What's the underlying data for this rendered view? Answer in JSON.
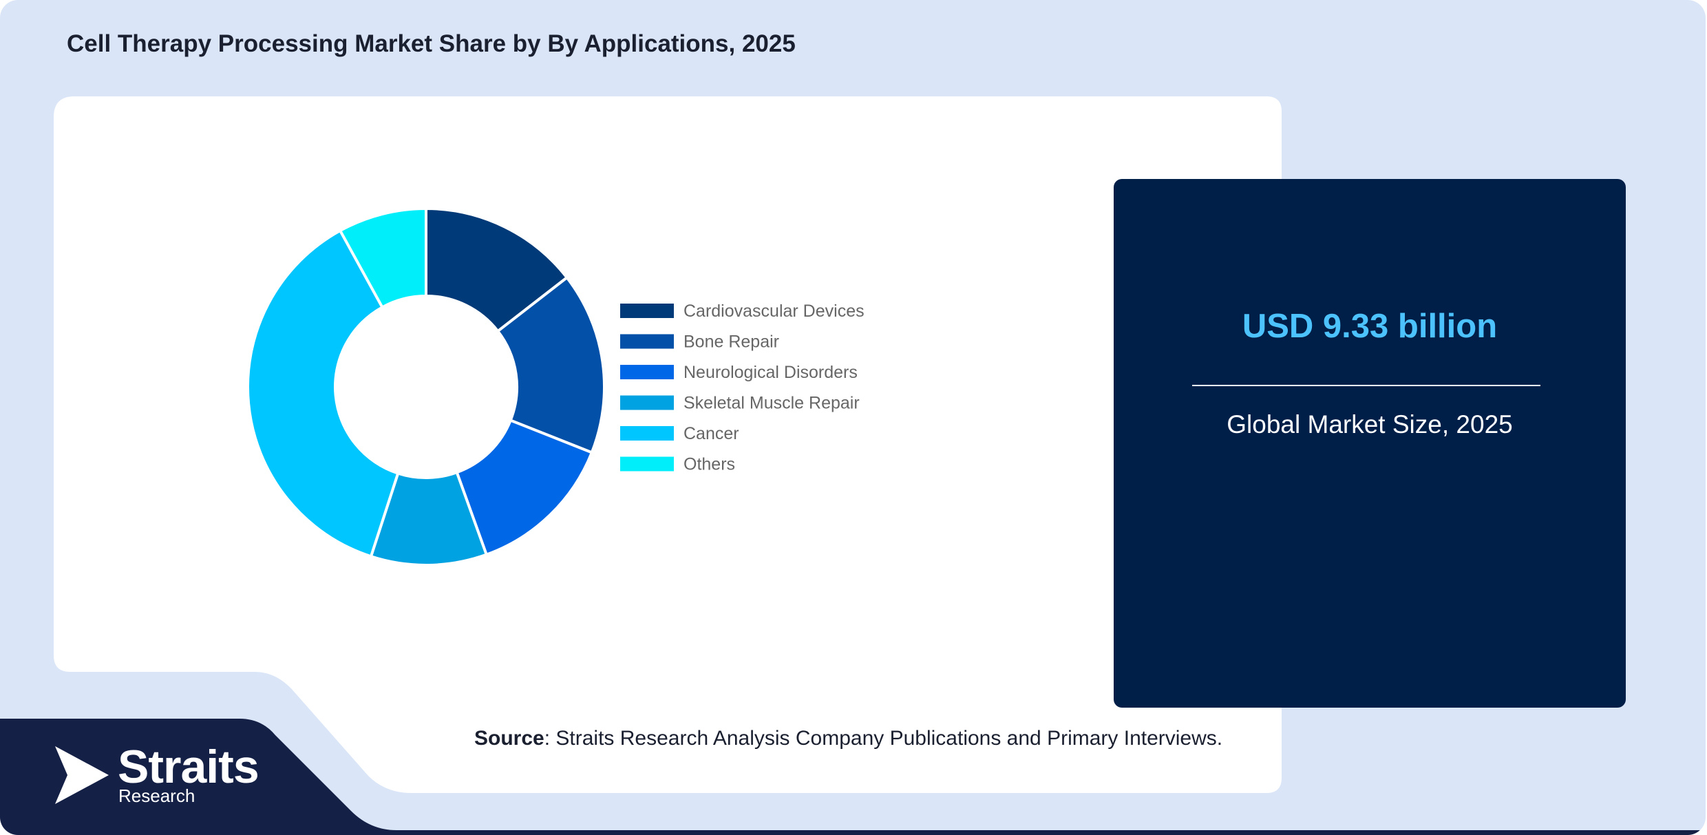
{
  "title": "Cell Therapy Processing Market Share by By Applications, 2025",
  "chart_data": {
    "type": "pie",
    "donut": true,
    "categories": [
      "Cardiovascular Devices",
      "Bone Repair",
      "Neurological Disorders",
      "Skeletal Muscle Repair",
      "Cancer",
      "Others"
    ],
    "values": [
      14.5,
      16.5,
      13.5,
      10.5,
      37,
      8
    ],
    "colors": [
      "#003a78",
      "#0250a8",
      "#0067e6",
      "#00a2e2",
      "#00c6ff",
      "#00eefa"
    ],
    "legend_position": "right"
  },
  "kpi": {
    "value": "USD 9.33 billion",
    "label": "Global Market Size, 2025"
  },
  "source": {
    "label": "Source",
    "text": ": Straits Research Analysis Company Publications and Primary Interviews."
  },
  "brand": {
    "name": "Straits",
    "sub": "Research",
    "color_navy": "#152046",
    "color_dark_card": "#001f48",
    "color_bg": "#dae6f8"
  }
}
